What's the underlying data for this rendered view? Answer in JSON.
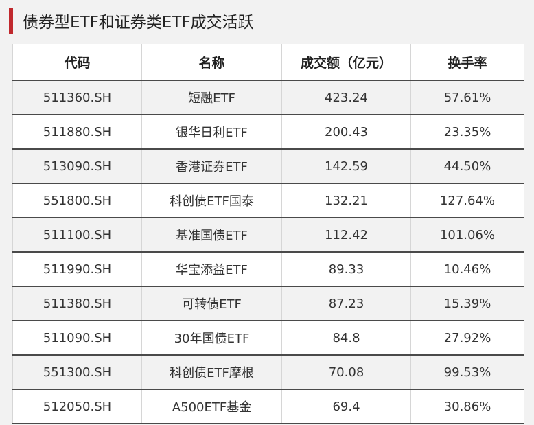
{
  "title": "债券型ETF和证券类ETF成交活跃",
  "colors": {
    "accent": "#c0282d",
    "row_alt": "#f2f2f2",
    "row": "#ffffff",
    "rule": "#4a4a4a"
  },
  "table": {
    "headers": [
      "代码",
      "名称",
      "成交额（亿元）",
      "换手率"
    ],
    "rows": [
      [
        "511360.SH",
        "短融ETF",
        "423.24",
        "57.61%"
      ],
      [
        "511880.SH",
        "银华日利ETF",
        "200.43",
        "23.35%"
      ],
      [
        "513090.SH",
        "香港证券ETF",
        "142.59",
        "44.50%"
      ],
      [
        "551800.SH",
        "科创债ETF国泰",
        "132.21",
        "127.64%"
      ],
      [
        "511100.SH",
        "基准国债ETF",
        "112.42",
        "101.06%"
      ],
      [
        "511990.SH",
        "华宝添益ETF",
        "89.33",
        "10.46%"
      ],
      [
        "511380.SH",
        "可转债ETF",
        "87.23",
        "15.39%"
      ],
      [
        "511090.SH",
        "30年国债ETF",
        "84.8",
        "27.92%"
      ],
      [
        "551300.SH",
        "科创债ETF摩根",
        "70.08",
        "99.53%"
      ],
      [
        "512050.SH",
        "A500ETF基金",
        "69.4",
        "30.86%"
      ]
    ]
  }
}
